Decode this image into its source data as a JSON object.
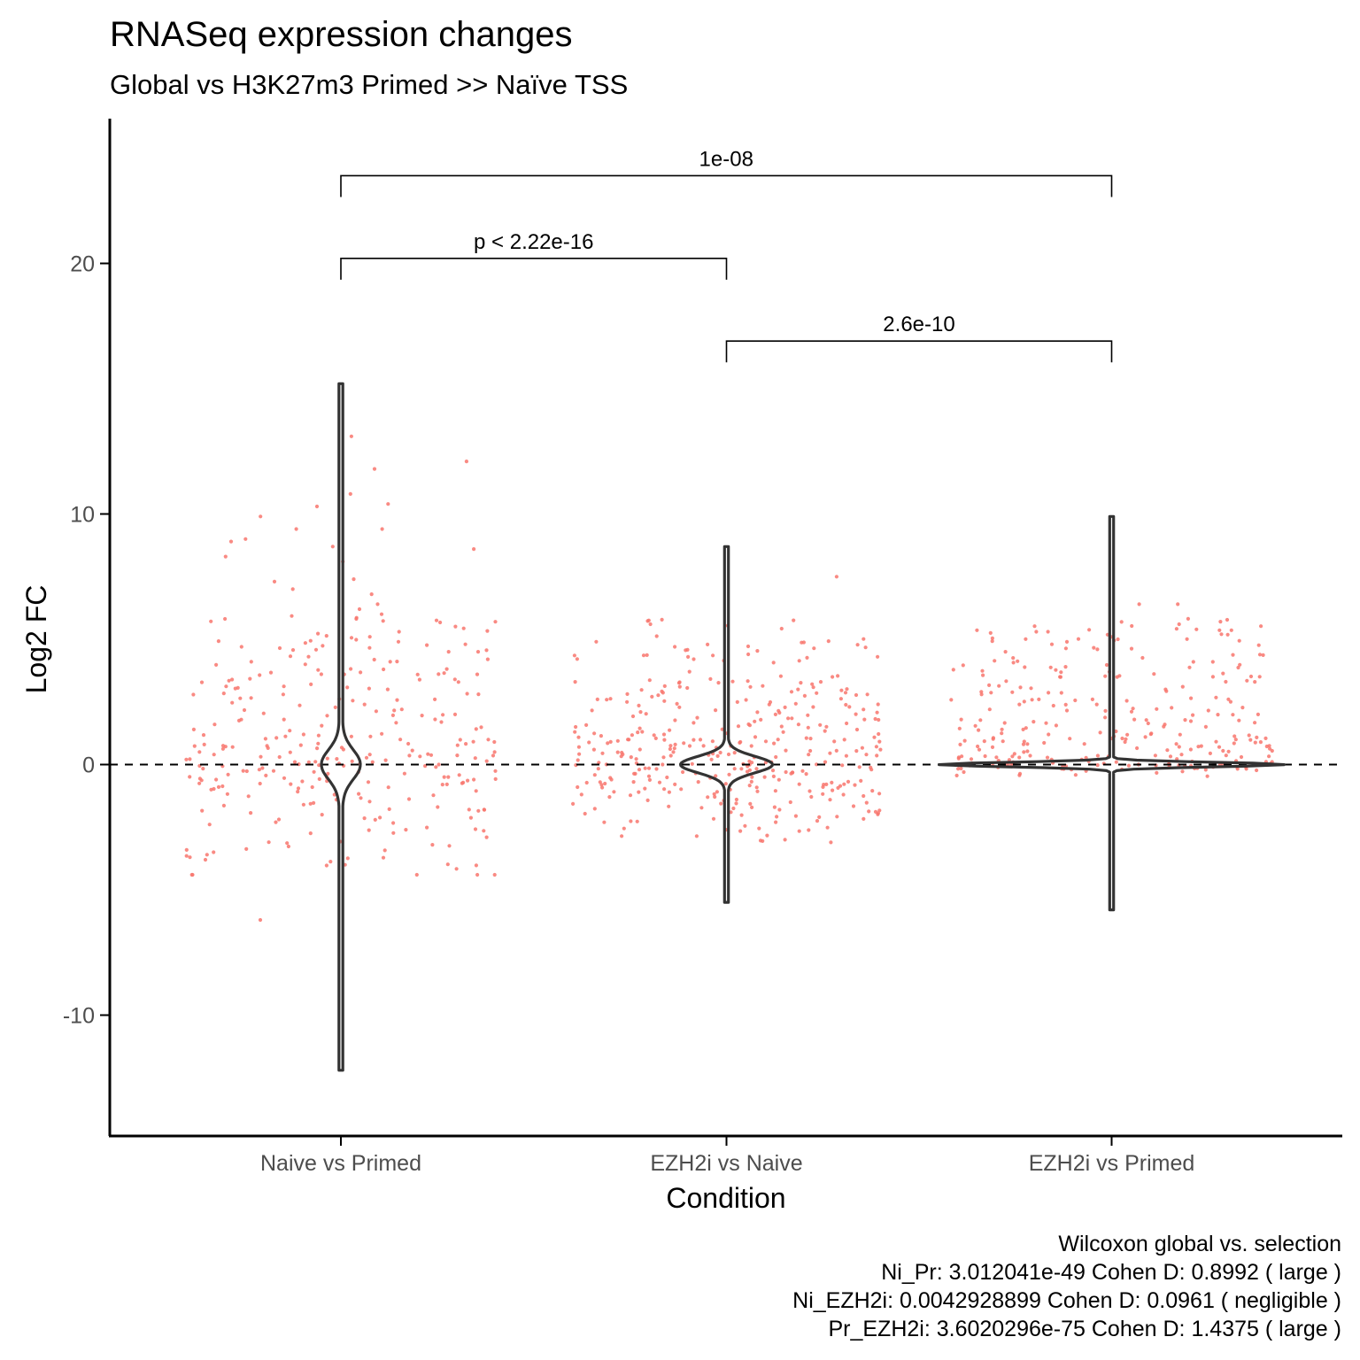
{
  "chart_data": {
    "type": "violin",
    "title": "RNASeq expression changes",
    "subtitle": "Global vs H3K27m3 Primed >> Naïve TSS",
    "xlabel": "Condition",
    "ylabel": "Log2 FC",
    "ylim": [
      -14.5,
      25.5
    ],
    "yticks": [
      -10,
      0,
      10,
      20
    ],
    "reference_line": 0,
    "point_color": "#F8766D",
    "violin_color": "#333333",
    "categories": [
      "Naive vs Primed",
      "EZH2i vs Naive",
      "EZH2i vs Primed"
    ],
    "violins": [
      {
        "category": "Naive vs Primed",
        "min": -12.2,
        "max": 15.2
      },
      {
        "category": "EZH2i vs Naive",
        "min": -5.5,
        "max": 8.7
      },
      {
        "category": "EZH2i vs Primed",
        "min": -5.8,
        "max": 9.9
      }
    ],
    "comparisons": [
      {
        "from": "Naive vs Primed",
        "to": "EZH2i vs Naive",
        "label": "p < 2.22e-16",
        "y": 20.2
      },
      {
        "from": "EZH2i vs Naive",
        "to": "EZH2i vs Primed",
        "label": "2.6e-10",
        "y": 16.9
      },
      {
        "from": "Naive vs Primed",
        "to": "EZH2i vs Primed",
        "label": "1e-08",
        "y": 23.5
      }
    ],
    "points": [
      {
        "category": "Naive vs Primed",
        "values": [
          13.1,
          12.1,
          11.8,
          10.8,
          10.4,
          10.3,
          9.9,
          9.4,
          9.4,
          9.0,
          8.9,
          8.7,
          8.6,
          8.3,
          8.1,
          7.4,
          7.3,
          7.0,
          6.8,
          6.4,
          6.2,
          6.0,
          5.7,
          5.3,
          5.1,
          4.9,
          4.7,
          4.5,
          4.2,
          4.0,
          3.8,
          3.6,
          3.4,
          3.2,
          3.0,
          2.8,
          2.6,
          2.4,
          2.2,
          2.0,
          1.8,
          1.6,
          1.4,
          1.2,
          1.0,
          0.9,
          0.8,
          0.7,
          0.6,
          0.5,
          0.4,
          0.3,
          0.2,
          0.1,
          0.0,
          -0.1,
          -0.2,
          -0.3,
          -0.4,
          -0.5,
          -0.6,
          -0.7,
          -0.8,
          -0.9,
          -1.0,
          -1.2,
          -1.4,
          -1.6,
          -1.8,
          -2.0,
          -2.3,
          -2.6,
          -2.9,
          -3.2,
          -3.5,
          -3.8,
          -4.0,
          -4.4,
          -6.2
        ]
      },
      {
        "category": "EZH2i vs Naive",
        "values": [
          7.5,
          5.6,
          4.9,
          4.7,
          4.4,
          4.3,
          3.5,
          3.3,
          3.1,
          3.0,
          2.8,
          2.6,
          2.5,
          2.3,
          2.1,
          2.0,
          1.8,
          1.6,
          1.5,
          1.3,
          1.2,
          1.1,
          1.0,
          0.9,
          0.8,
          0.7,
          0.6,
          0.5,
          0.4,
          0.3,
          0.2,
          0.1,
          0.0,
          -0.1,
          -0.2,
          -0.3,
          -0.4,
          -0.5,
          -0.6,
          -0.7,
          -0.8,
          -0.9,
          -1.0,
          -1.1,
          -1.2,
          -1.3,
          -1.5,
          -1.7,
          -1.9,
          -2.1,
          -2.3,
          -2.6,
          -3.0
        ]
      },
      {
        "category": "EZH2i vs Primed",
        "values": [
          6.4,
          6.4,
          5.6,
          5.3,
          5.2,
          5.0,
          4.8,
          4.5,
          4.1,
          3.9,
          3.7,
          3.5,
          3.3,
          3.0,
          2.8,
          2.6,
          2.4,
          2.2,
          2.0,
          1.8,
          1.6,
          1.4,
          1.2,
          1.1,
          1.0,
          0.9,
          0.8,
          0.7,
          0.6,
          0.5,
          0.4,
          0.3,
          0.2,
          0.15,
          0.1,
          0.05,
          0.0,
          -0.05,
          -0.1,
          -0.15,
          -0.2,
          -0.3
        ]
      }
    ],
    "caption": [
      "Wilcoxon global vs. selection",
      "Ni_Pr: 3.012041e-49 Cohen D: 0.8992 ( large )",
      "Ni_EZH2i: 0.0042928899 Cohen D: 0.0961 ( negligible )",
      "Pr_EZH2i: 3.6020296e-75 Cohen D: 1.4375 ( large )"
    ],
    "grid": false,
    "legend": "none"
  }
}
